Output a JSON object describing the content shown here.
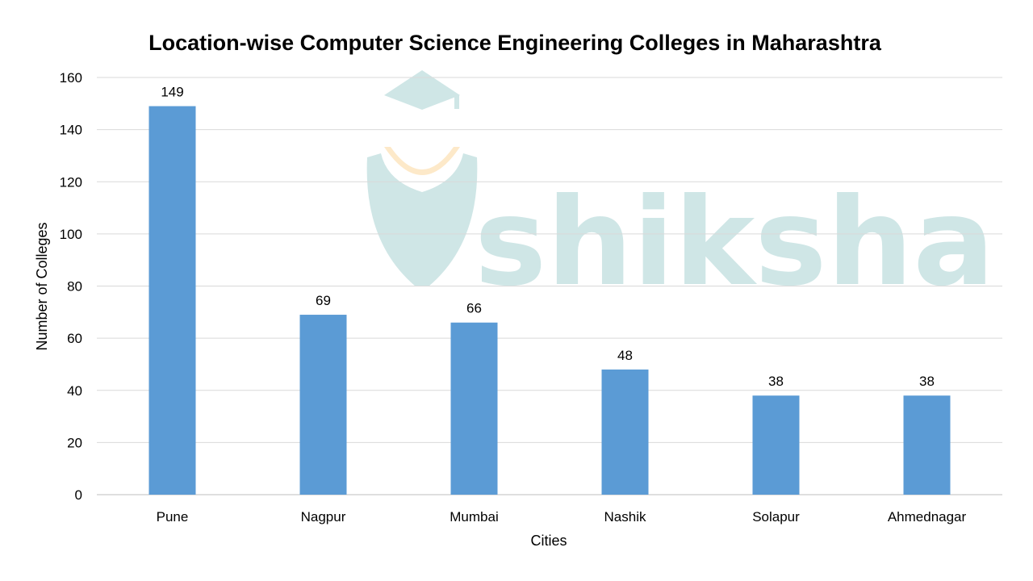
{
  "chart_data": {
    "type": "bar",
    "title": "Location-wise Computer Science Engineering Colleges in Maharashtra",
    "xlabel": "Cities",
    "ylabel": "Number of Colleges",
    "categories": [
      "Pune",
      "Nagpur",
      "Mumbai",
      "Nashik",
      "Solapur",
      "Ahmednagar"
    ],
    "values": [
      149,
      69,
      66,
      48,
      38,
      38
    ],
    "ylim": [
      0,
      160
    ],
    "yticks": [
      0,
      20,
      40,
      60,
      80,
      100,
      120,
      140,
      160
    ],
    "grid": true,
    "legend": "none",
    "bar_color": "#5B9BD5",
    "data_labels": true
  },
  "watermark": {
    "text": "shiksha",
    "color": "#cfe6e6",
    "accent_color": "#fde9c9"
  }
}
